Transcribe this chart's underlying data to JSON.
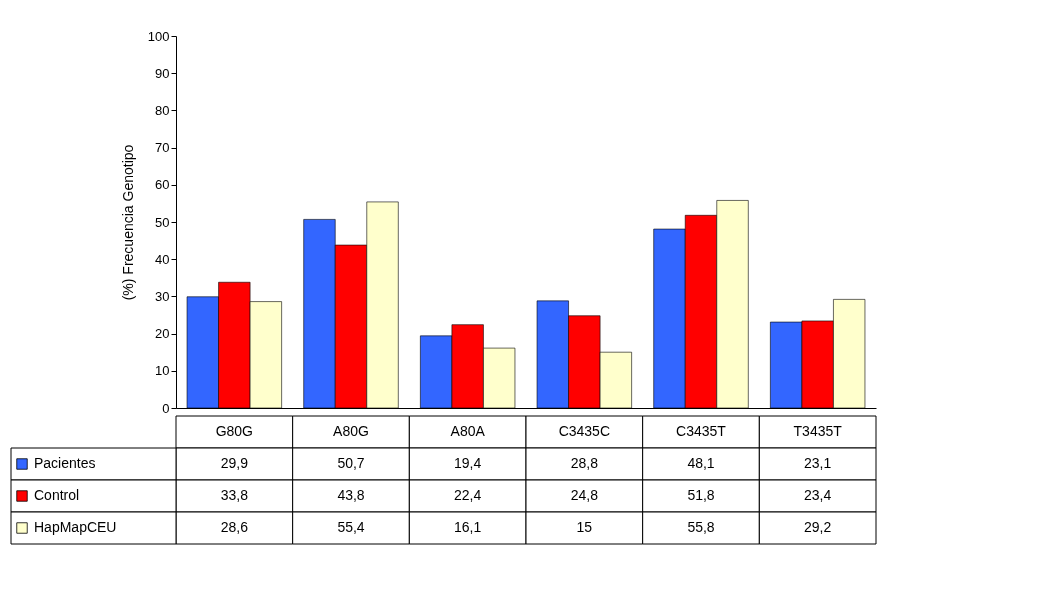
{
  "chart_data": {
    "type": "bar",
    "ylabel": "(%) Frecuencia Genotipo",
    "categories": [
      "G80G",
      "A80G",
      "A80A",
      "C3435C",
      "C3435T",
      "T3435T"
    ],
    "series": [
      {
        "name": "Pacientes",
        "color": "#3366ff",
        "values": [
          29.9,
          50.7,
          19.4,
          28.8,
          48.1,
          23.1
        ],
        "value_labels": [
          "29,9",
          "50,7",
          "19,4",
          "28,8",
          "48,1",
          "23,1"
        ]
      },
      {
        "name": "Control",
        "color": "#ff0000",
        "values": [
          33.8,
          43.8,
          22.4,
          24.8,
          51.8,
          23.4
        ],
        "value_labels": [
          "33,8",
          "43,8",
          "22,4",
          "24,8",
          "51,8",
          "23,4"
        ]
      },
      {
        "name": "HapMapCEU",
        "color": "#ffffcc",
        "values": [
          28.6,
          55.4,
          16.1,
          15,
          55.8,
          29.2
        ],
        "value_labels": [
          "28,6",
          "55,4",
          "16,1",
          "15",
          "55,8",
          "29,2"
        ]
      }
    ],
    "ylim": [
      0,
      100
    ],
    "yticks": [
      0,
      10,
      20,
      30,
      40,
      50,
      60,
      70,
      80,
      90,
      100
    ],
    "grid": false,
    "legend": "bottom"
  }
}
